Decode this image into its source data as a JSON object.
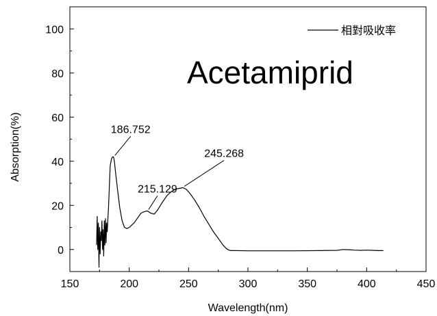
{
  "chart_data": {
    "type": "line",
    "title": "Acetamiprid",
    "xlabel": "Wavelength(nm)",
    "ylabel": "Absorption(%)",
    "xlim": [
      150,
      450
    ],
    "ylim": [
      -10,
      110
    ],
    "xticks": [
      150,
      200,
      250,
      300,
      350,
      400,
      450
    ],
    "yticks": [
      0,
      20,
      40,
      60,
      80,
      100
    ],
    "grid": false,
    "legend_position": "top-right",
    "series": [
      {
        "name": "相對吸收率",
        "color": "#000000",
        "x": [
          172.5,
          173,
          173.5,
          174,
          174.5,
          175,
          175.5,
          176,
          176.5,
          177,
          177.5,
          178,
          178.5,
          179,
          179.5,
          180,
          180.5,
          181,
          181.5,
          182,
          182.5,
          183,
          183.5,
          184,
          185,
          186,
          186.75,
          187.5,
          188.5,
          190,
          192,
          194,
          196,
          198,
          200,
          202,
          204,
          206,
          208,
          210,
          212,
          215.13,
          218,
          221,
          224,
          228,
          232,
          236,
          240,
          243,
          245.27,
          248,
          251,
          255,
          259,
          263,
          267,
          271,
          275,
          279,
          282,
          284,
          286,
          290,
          300,
          320,
          340,
          360,
          375,
          380,
          385,
          390,
          395,
          400,
          405,
          410,
          414
        ],
        "values": [
          2,
          15,
          0,
          12,
          -8,
          10,
          -2,
          8,
          4,
          13,
          0,
          9,
          -3,
          13,
          2,
          14,
          3,
          12,
          8,
          14,
          18,
          25,
          32,
          38,
          41,
          42,
          42,
          40,
          35,
          28,
          19,
          13,
          10,
          9.5,
          10,
          11,
          12,
          13.5,
          15,
          16.5,
          17,
          17.5,
          16.5,
          16,
          18,
          21.5,
          24.5,
          26.5,
          27.5,
          27.8,
          28,
          27.3,
          25.5,
          22.5,
          19,
          15,
          11.5,
          8,
          5,
          2,
          0.3,
          -0.3,
          -0.5,
          -0.5,
          -0.6,
          -0.6,
          -0.6,
          -0.5,
          -0.4,
          0,
          -0.1,
          -0.3,
          -0.4,
          -0.3,
          -0.4,
          -0.5,
          -0.5
        ]
      }
    ],
    "annotations": [
      {
        "text": "186.752",
        "x": 186.752,
        "y": 42
      },
      {
        "text": "215.129",
        "x": 215.129,
        "y": 17.5
      },
      {
        "text": "245.268",
        "x": 245.268,
        "y": 28
      }
    ]
  }
}
